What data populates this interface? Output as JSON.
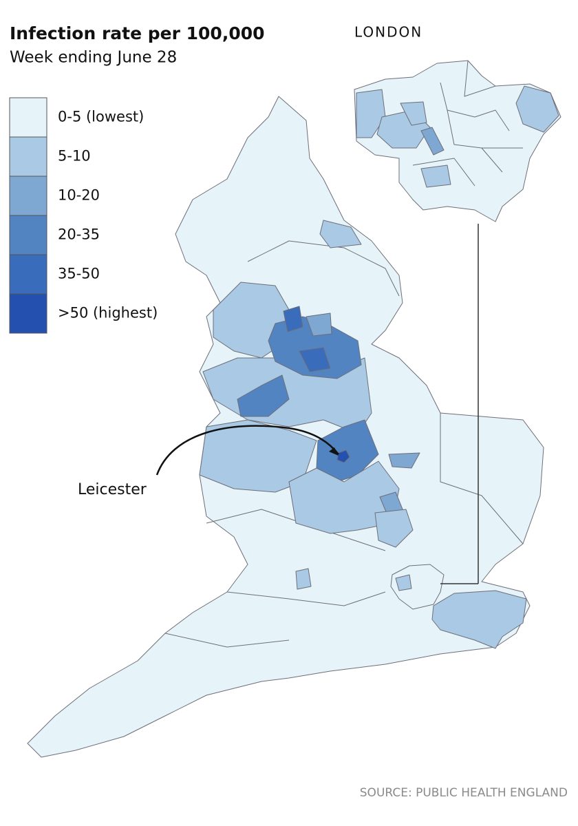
{
  "header": {
    "title": "Infection rate per 100,000",
    "subtitle": "Week ending June 28"
  },
  "legend": {
    "items": [
      {
        "label": "0-5 (lowest)",
        "color": "#e6f4fa"
      },
      {
        "label": "5-10",
        "color": "#a9c9e4"
      },
      {
        "label": "10-20",
        "color": "#7ea8d2"
      },
      {
        "label": "20-35",
        "color": "#5384c2"
      },
      {
        "label": "35-50",
        "color": "#3a6cbc"
      },
      {
        "label": ">50 (highest)",
        "color": "#2450b0"
      }
    ]
  },
  "inset": {
    "label": "LONDON"
  },
  "annotation": {
    "label": "Leicester"
  },
  "source": "SOURCE: PUBLIC HEALTH ENGLAND"
}
